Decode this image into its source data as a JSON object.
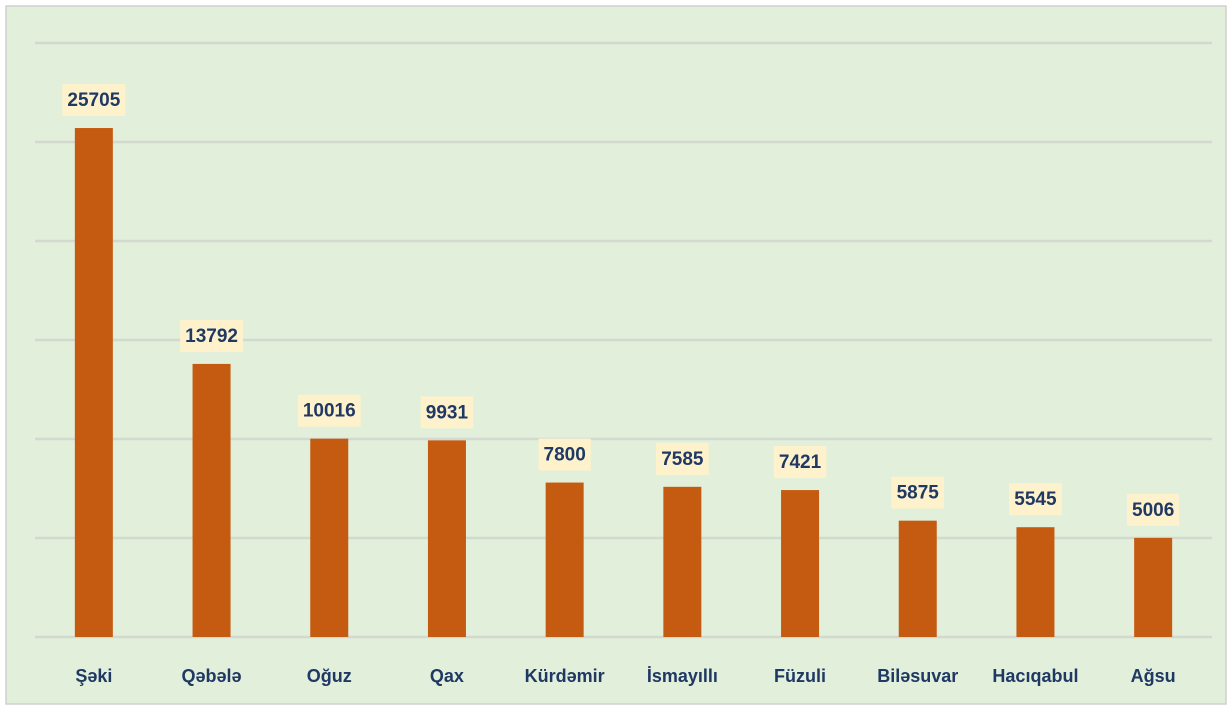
{
  "chart_data": {
    "type": "bar",
    "categories": [
      "Şəki",
      "Qəbələ",
      "Oğuz",
      "Qax",
      "Kürdəmir",
      "İsmayıllı",
      "Füzuli",
      "Biləsuvar",
      "Hacıqabul",
      "Ağsu"
    ],
    "values": [
      25705,
      13792,
      10016,
      9931,
      7800,
      7585,
      7421,
      5875,
      5545,
      5006
    ],
    "color": "#c55a11",
    "ylim": [
      0,
      30000
    ],
    "yticks": [
      0,
      5000,
      10000,
      15000,
      20000,
      25000,
      30000
    ],
    "grid": true
  }
}
